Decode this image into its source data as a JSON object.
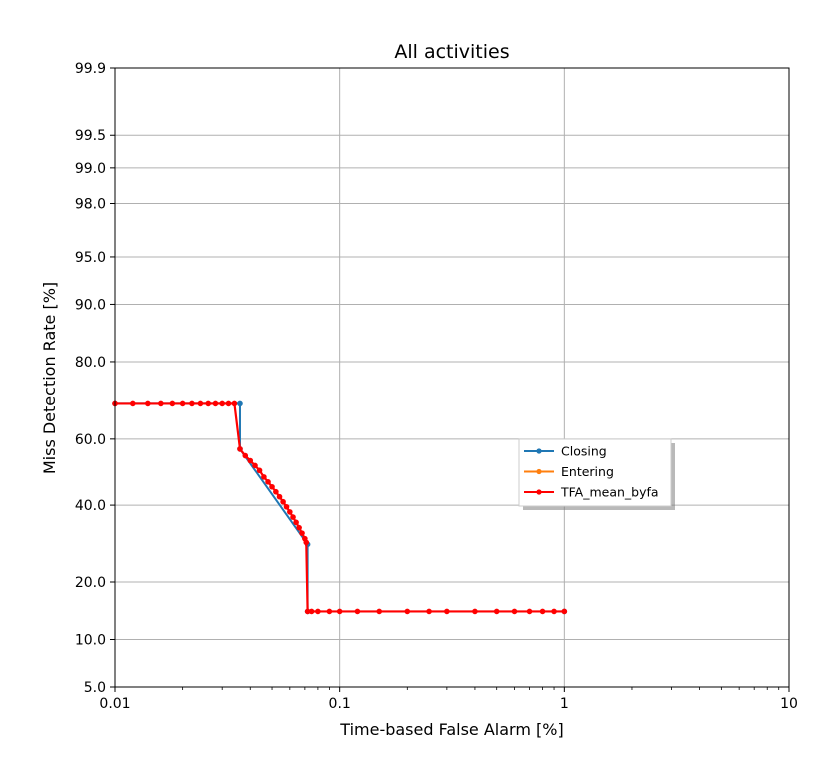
{
  "chart_data": {
    "type": "line",
    "title": "All activities",
    "xlabel": "Time-based False Alarm [%]",
    "ylabel": "Miss Detection Rate [%]",
    "x_scale": "log",
    "y_scale": "normal-deviate",
    "xlim": [
      0.01,
      10
    ],
    "ylim": [
      5.0,
      99.9
    ],
    "x_ticks": [
      0.01,
      0.1,
      1,
      10
    ],
    "x_tick_labels": [
      "0.01",
      "0.1",
      "1",
      "10"
    ],
    "y_ticks": [
      5.0,
      10.0,
      20.0,
      40.0,
      60.0,
      80.0,
      90.0,
      95.0,
      98.0,
      99.0,
      99.5,
      99.9
    ],
    "y_tick_labels": [
      "5.0",
      "10.0",
      "20.0",
      "40.0",
      "60.0",
      "80.0",
      "90.0",
      "95.0",
      "98.0",
      "99.0",
      "99.5",
      "99.9"
    ],
    "grid": true,
    "legend_position": "center-right",
    "series": [
      {
        "name": "Closing",
        "color": "#1f77b4",
        "x": [
          0.01,
          0.036,
          0.036,
          0.072,
          0.072,
          1.0
        ],
        "y": [
          70.0,
          70.0,
          57.0,
          29.0,
          14.3,
          14.3
        ]
      },
      {
        "name": "Entering",
        "color": "#ff7f0e",
        "x": [],
        "y": []
      },
      {
        "name": "TFA_mean_byfa",
        "color": "#ff0000",
        "x": [
          0.01,
          0.012,
          0.014,
          0.016,
          0.018,
          0.02,
          0.022,
          0.024,
          0.026,
          0.028,
          0.03,
          0.032,
          0.034,
          0.036,
          0.038,
          0.04,
          0.042,
          0.044,
          0.046,
          0.048,
          0.05,
          0.052,
          0.054,
          0.056,
          0.058,
          0.06,
          0.062,
          0.064,
          0.066,
          0.068,
          0.07,
          0.071,
          0.072,
          0.075,
          0.08,
          0.09,
          0.1,
          0.12,
          0.15,
          0.2,
          0.25,
          0.3,
          0.4,
          0.5,
          0.6,
          0.7,
          0.8,
          0.9,
          1.0
        ],
        "y": [
          70.0,
          70.0,
          70.0,
          70.0,
          70.0,
          70.0,
          70.0,
          70.0,
          70.0,
          70.0,
          70.0,
          70.0,
          70.0,
          57.0,
          55.0,
          53.5,
          52.0,
          50.5,
          48.5,
          47.0,
          45.5,
          44.0,
          42.5,
          41.0,
          39.5,
          38.0,
          36.5,
          35.0,
          33.5,
          32.0,
          30.5,
          29.5,
          14.3,
          14.3,
          14.3,
          14.3,
          14.3,
          14.3,
          14.3,
          14.3,
          14.3,
          14.3,
          14.3,
          14.3,
          14.3,
          14.3,
          14.3,
          14.3,
          14.3
        ]
      }
    ]
  }
}
